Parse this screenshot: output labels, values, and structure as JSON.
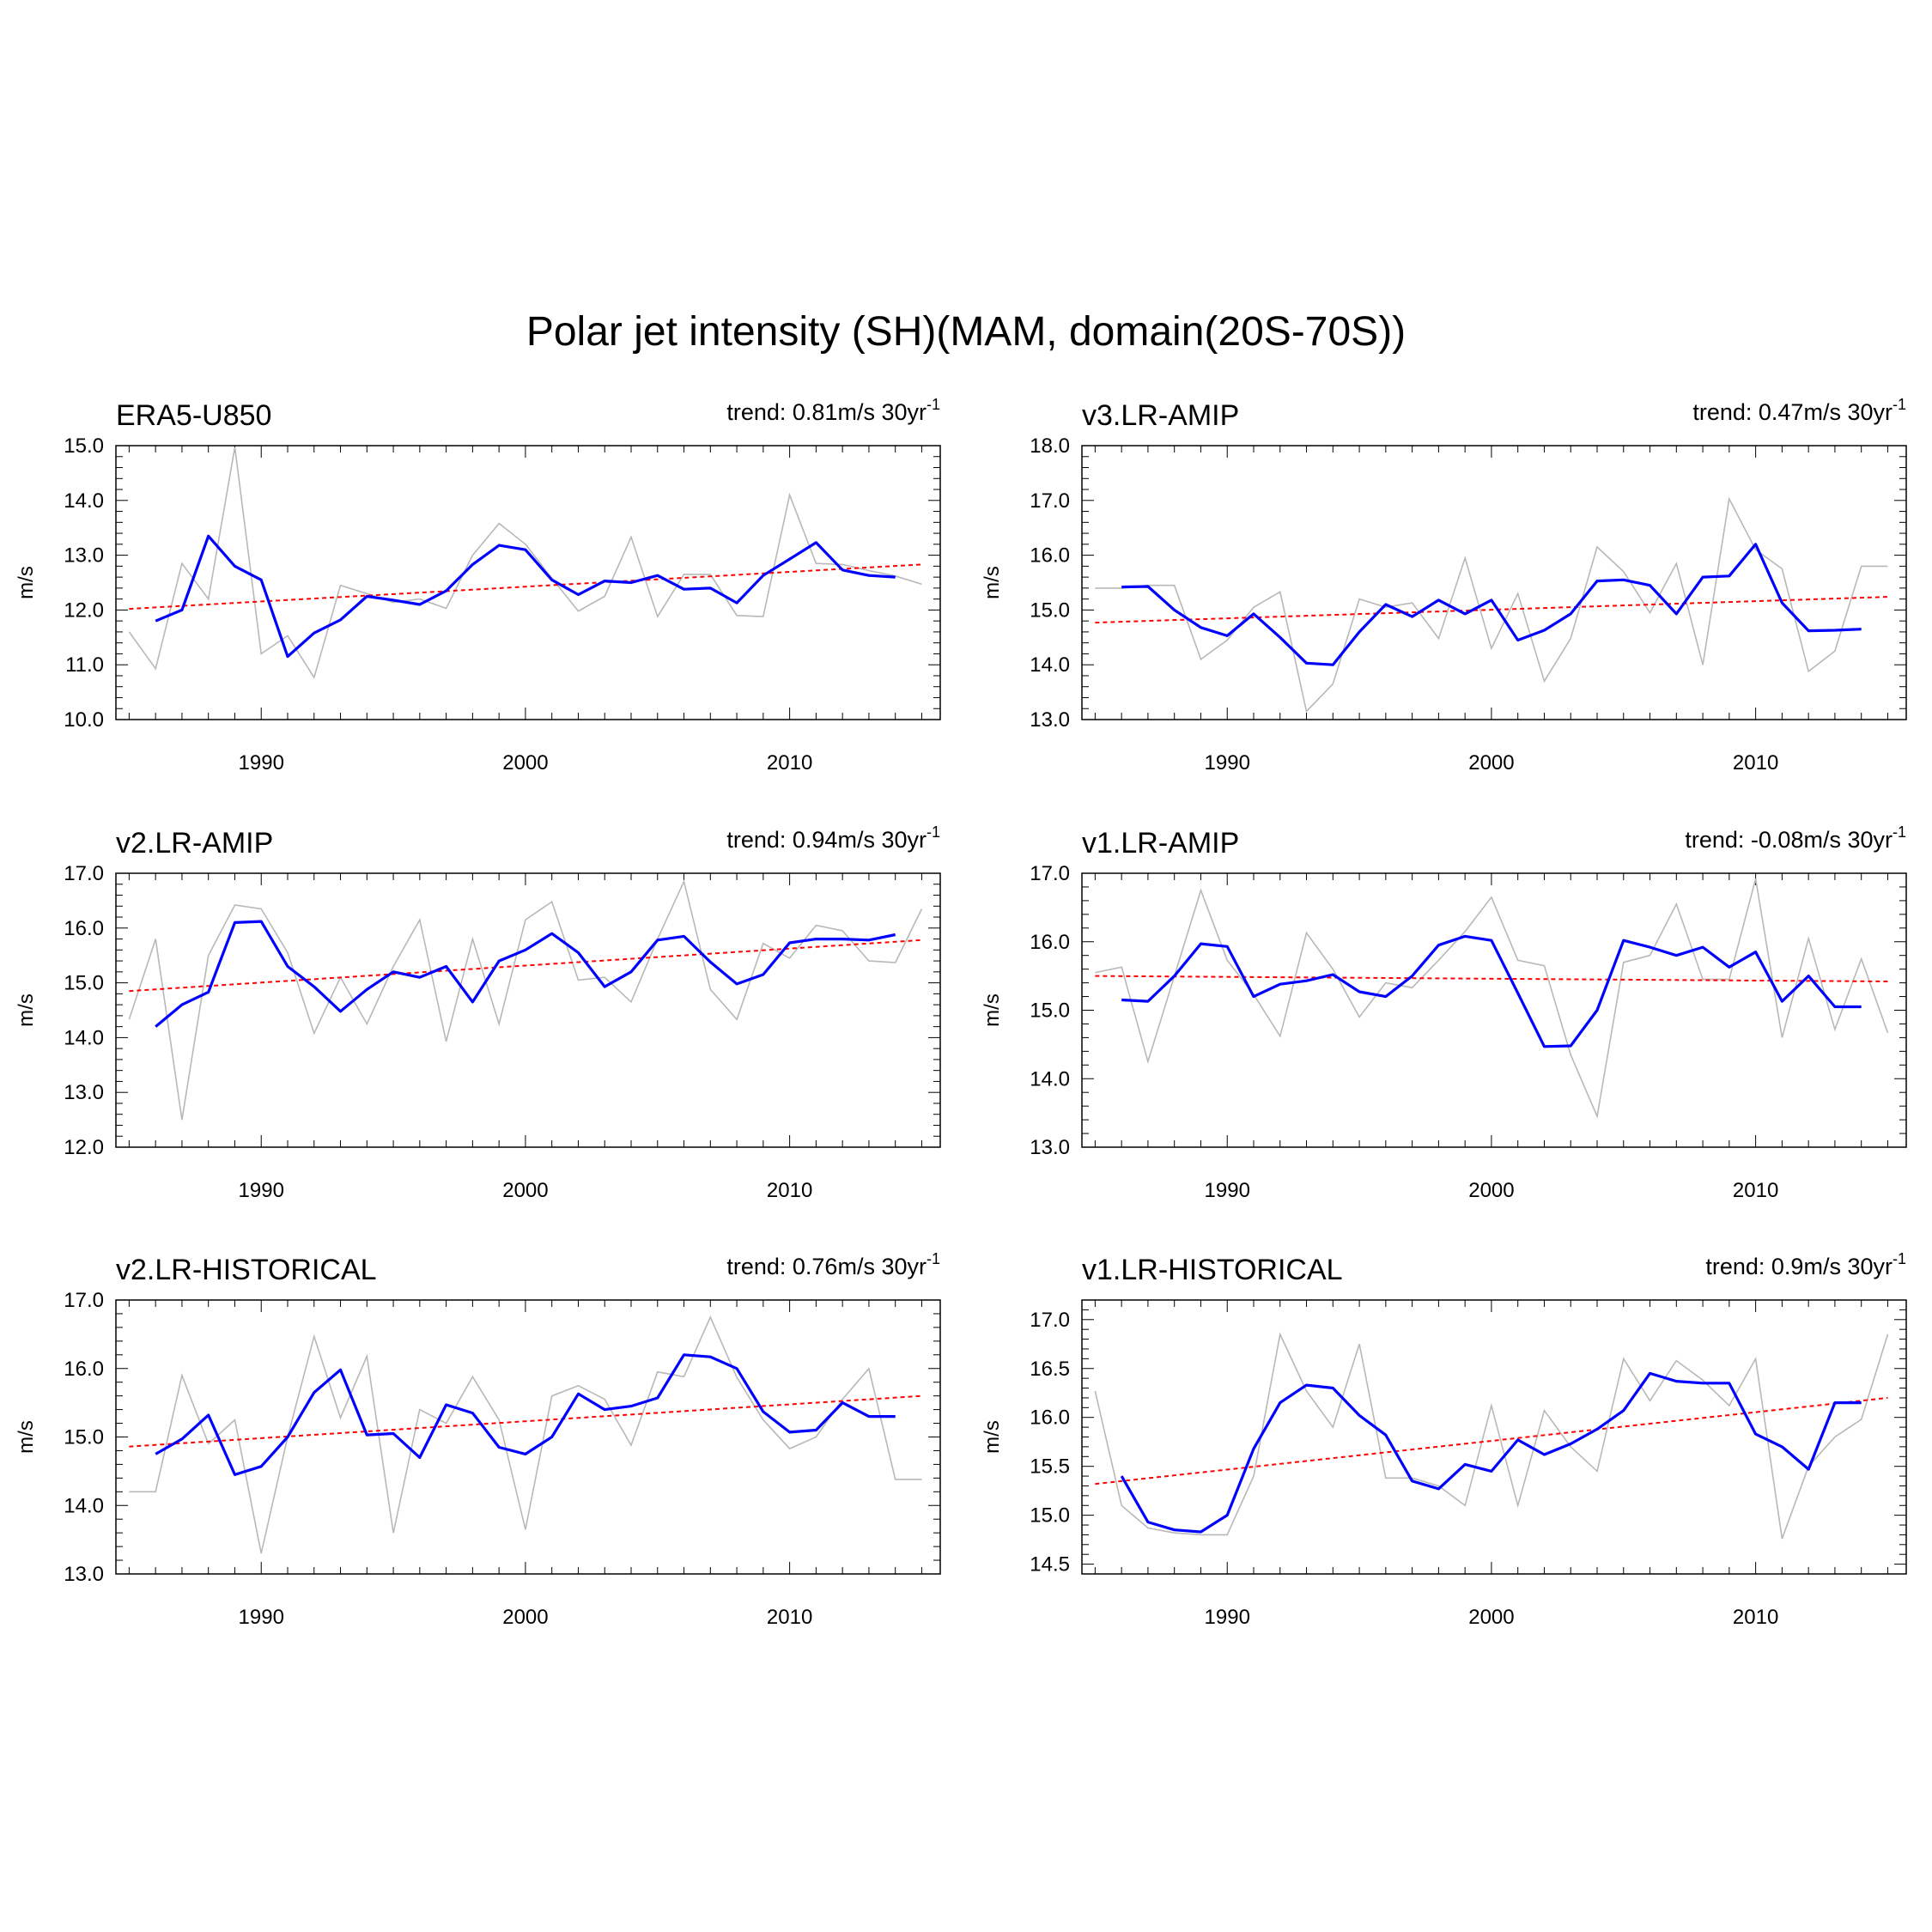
{
  "figure": {
    "title": "Polar jet intensity (SH)(MAM, domain(20S-70S))"
  },
  "colors": {
    "raw": "#b8b8b8",
    "smooth": "#0000ff",
    "trend": "#ff0000",
    "axis": "#000000"
  },
  "chart_data": [
    {
      "type": "line",
      "title": "ERA5-U850",
      "trend_label": "trend: 0.81m/s 30yr",
      "trend_sup": "-1",
      "ylabel": "m/s",
      "xlim": [
        1984.5,
        2015.7
      ],
      "ylim": [
        10.0,
        15.0
      ],
      "yticks": [
        10.0,
        11.0,
        12.0,
        13.0,
        14.0,
        15.0
      ],
      "xticks": [
        1990,
        2000,
        2010
      ],
      "raw": {
        "x": [
          1985,
          1986,
          1987,
          1988,
          1989,
          1990,
          1991,
          1992,
          1993,
          1994,
          1995,
          1996,
          1997,
          1998,
          1999,
          2000,
          2001,
          2002,
          2003,
          2004,
          2005,
          2006,
          2007,
          2008,
          2009,
          2010,
          2011,
          2012,
          2013,
          2014,
          2015
        ],
        "y": [
          11.6,
          10.93,
          12.85,
          12.2,
          14.97,
          11.2,
          11.53,
          10.77,
          12.45,
          12.3,
          12.14,
          12.2,
          12.03,
          13.0,
          13.58,
          13.2,
          12.58,
          11.98,
          12.25,
          13.33,
          11.88,
          12.65,
          12.65,
          11.9,
          11.88,
          14.1,
          12.85,
          12.83,
          12.72,
          12.62,
          12.47
        ]
      },
      "smooth": {
        "x": [
          1986,
          1987,
          1988,
          1989,
          1990,
          1991,
          1992,
          1993,
          1994,
          1995,
          1996,
          1997,
          1998,
          1999,
          2000,
          2001,
          2002,
          2003,
          2004,
          2005,
          2006,
          2007,
          2008,
          2009,
          2010,
          2011,
          2012,
          2013,
          2014
        ],
        "y": [
          11.8,
          12.0,
          13.35,
          12.8,
          12.55,
          11.15,
          11.58,
          11.82,
          12.25,
          12.18,
          12.1,
          12.35,
          12.83,
          13.18,
          13.1,
          12.55,
          12.28,
          12.53,
          12.5,
          12.63,
          12.38,
          12.4,
          12.13,
          12.63,
          12.93,
          13.23,
          12.73,
          12.63,
          12.6
        ]
      },
      "trend": {
        "x": [
          1985,
          2015
        ],
        "y": [
          12.02,
          12.83
        ]
      }
    },
    {
      "type": "line",
      "title": "v3.LR-AMIP",
      "trend_label": "trend: 0.47m/s 30yr",
      "trend_sup": "-1",
      "ylabel": "m/s",
      "xlim": [
        1984.5,
        2015.7
      ],
      "ylim": [
        13.0,
        18.0
      ],
      "yticks": [
        13.0,
        14.0,
        15.0,
        16.0,
        17.0,
        18.0
      ],
      "xticks": [
        1990,
        2000,
        2010
      ],
      "raw": {
        "x": [
          1985,
          1986,
          1987,
          1988,
          1989,
          1990,
          1991,
          1992,
          1993,
          1994,
          1995,
          1996,
          1997,
          1998,
          1999,
          2000,
          2001,
          2002,
          2003,
          2004,
          2005,
          2006,
          2007,
          2008,
          2009,
          2010,
          2011,
          2012,
          2013,
          2014,
          2015
        ],
        "y": [
          15.4,
          15.4,
          15.45,
          15.45,
          14.1,
          14.45,
          15.05,
          15.33,
          13.15,
          13.65,
          15.2,
          15.05,
          15.13,
          14.48,
          15.95,
          14.3,
          15.3,
          13.7,
          14.48,
          16.15,
          15.7,
          14.95,
          15.85,
          14.0,
          17.03,
          16.1,
          15.75,
          13.88,
          14.25,
          15.8,
          15.8
        ]
      },
      "smooth": {
        "x": [
          1986,
          1987,
          1988,
          1989,
          1990,
          1991,
          1992,
          1993,
          1994,
          1995,
          1996,
          1997,
          1998,
          1999,
          2000,
          2001,
          2002,
          2003,
          2004,
          2005,
          2006,
          2007,
          2008,
          2009,
          2010,
          2011,
          2012,
          2013,
          2014
        ],
        "y": [
          15.42,
          15.43,
          15.0,
          14.68,
          14.53,
          14.93,
          14.5,
          14.03,
          14.0,
          14.6,
          15.1,
          14.88,
          15.18,
          14.93,
          15.18,
          14.45,
          14.63,
          14.93,
          15.53,
          15.55,
          15.45,
          14.93,
          15.6,
          15.62,
          16.2,
          15.13,
          14.62,
          14.63,
          14.65
        ]
      },
      "trend": {
        "x": [
          1985,
          2015
        ],
        "y": [
          14.77,
          15.24
        ]
      }
    },
    {
      "type": "line",
      "title": "v2.LR-AMIP",
      "trend_label": "trend: 0.94m/s 30yr",
      "trend_sup": "-1",
      "ylabel": "m/s",
      "xlim": [
        1984.5,
        2015.7
      ],
      "ylim": [
        12.0,
        17.0
      ],
      "yticks": [
        12.0,
        13.0,
        14.0,
        15.0,
        16.0,
        17.0
      ],
      "xticks": [
        1990,
        2000,
        2010
      ],
      "raw": {
        "x": [
          1985,
          1986,
          1987,
          1988,
          1989,
          1990,
          1991,
          1992,
          1993,
          1994,
          1995,
          1996,
          1997,
          1998,
          1999,
          2000,
          2001,
          2002,
          2003,
          2004,
          2005,
          2006,
          2007,
          2008,
          2009,
          2010,
          2011,
          2012,
          2013,
          2014,
          2015
        ],
        "y": [
          14.33,
          15.8,
          12.5,
          15.5,
          16.42,
          16.35,
          15.55,
          14.08,
          15.1,
          14.25,
          15.3,
          16.15,
          13.93,
          15.8,
          14.25,
          16.15,
          16.48,
          15.05,
          15.1,
          14.65,
          15.8,
          16.85,
          14.88,
          14.33,
          15.72,
          15.45,
          16.05,
          15.95,
          15.4,
          15.37,
          16.35
        ]
      },
      "smooth": {
        "x": [
          1986,
          1987,
          1988,
          1989,
          1990,
          1991,
          1992,
          1993,
          1994,
          1995,
          1996,
          1997,
          1998,
          1999,
          2000,
          2001,
          2002,
          2003,
          2004,
          2005,
          2006,
          2007,
          2008,
          2009,
          2010,
          2011,
          2012,
          2013,
          2014
        ],
        "y": [
          14.2,
          14.6,
          14.83,
          16.1,
          16.12,
          15.3,
          14.93,
          14.48,
          14.88,
          15.2,
          15.1,
          15.3,
          14.65,
          15.4,
          15.6,
          15.9,
          15.55,
          14.93,
          15.2,
          15.78,
          15.85,
          15.38,
          14.98,
          15.15,
          15.73,
          15.8,
          15.8,
          15.78,
          15.88
        ]
      },
      "trend": {
        "x": [
          1985,
          2015
        ],
        "y": [
          14.85,
          15.78
        ]
      }
    },
    {
      "type": "line",
      "title": "v1.LR-AMIP",
      "trend_label": "trend: -0.08m/s 30yr",
      "trend_sup": "-1",
      "ylabel": "m/s",
      "xlim": [
        1984.5,
        2015.7
      ],
      "ylim": [
        13.0,
        17.0
      ],
      "yticks": [
        13.0,
        14.0,
        15.0,
        16.0,
        17.0
      ],
      "xticks": [
        1990,
        2000,
        2010
      ],
      "raw": {
        "x": [
          1985,
          1986,
          1987,
          1988,
          1989,
          1990,
          1991,
          1992,
          1993,
          1994,
          1995,
          1996,
          1997,
          1998,
          1999,
          2000,
          2001,
          2002,
          2003,
          2004,
          2005,
          2006,
          2007,
          2008,
          2009,
          2010,
          2011,
          2012,
          2013,
          2014,
          2015
        ],
        "y": [
          15.55,
          15.63,
          14.25,
          15.5,
          16.75,
          15.73,
          15.23,
          14.62,
          16.13,
          15.6,
          14.9,
          15.4,
          15.33,
          15.73,
          16.15,
          16.65,
          15.73,
          15.65,
          14.35,
          13.45,
          15.7,
          15.8,
          16.55,
          15.45,
          15.45,
          16.92,
          14.6,
          16.05,
          14.72,
          15.75,
          14.67
        ]
      },
      "smooth": {
        "x": [
          1986,
          1987,
          1988,
          1989,
          1990,
          1991,
          1992,
          1993,
          1994,
          1995,
          1996,
          1997,
          1998,
          1999,
          2000,
          2001,
          2002,
          2003,
          2004,
          2005,
          2006,
          2007,
          2008,
          2009,
          2010,
          2011,
          2012,
          2013,
          2014
        ],
        "y": [
          15.15,
          15.13,
          15.5,
          15.97,
          15.93,
          15.2,
          15.38,
          15.43,
          15.52,
          15.27,
          15.2,
          15.5,
          15.95,
          16.08,
          16.02,
          15.25,
          14.47,
          14.48,
          15.0,
          16.02,
          15.92,
          15.8,
          15.92,
          15.63,
          15.85,
          15.13,
          15.5,
          15.05,
          15.05
        ]
      },
      "trend": {
        "x": [
          1985,
          2015
        ],
        "y": [
          15.5,
          15.42
        ]
      }
    },
    {
      "type": "line",
      "title": "v2.LR-HISTORICAL",
      "trend_label": "trend: 0.76m/s 30yr",
      "trend_sup": "-1",
      "ylabel": "m/s",
      "xlim": [
        1984.5,
        2015.7
      ],
      "ylim": [
        13.0,
        17.0
      ],
      "yticks": [
        13.0,
        14.0,
        15.0,
        16.0,
        17.0
      ],
      "xticks": [
        1990,
        2000,
        2010
      ],
      "raw": {
        "x": [
          1985,
          1986,
          1987,
          1988,
          1989,
          1990,
          1991,
          1992,
          1993,
          1994,
          1995,
          1996,
          1997,
          1998,
          1999,
          2000,
          2001,
          2002,
          2003,
          2004,
          2005,
          2006,
          2007,
          2008,
          2009,
          2010,
          2011,
          2012,
          2013,
          2014,
          2015
        ],
        "y": [
          14.2,
          14.2,
          15.9,
          14.9,
          15.25,
          13.3,
          15.0,
          16.47,
          15.28,
          16.18,
          13.6,
          15.4,
          15.2,
          15.88,
          15.25,
          13.65,
          15.6,
          15.75,
          15.55,
          14.88,
          15.95,
          15.88,
          16.75,
          15.87,
          15.25,
          14.83,
          15.0,
          15.55,
          16.0,
          14.38,
          14.38
        ]
      },
      "smooth": {
        "x": [
          1986,
          1987,
          1988,
          1989,
          1990,
          1991,
          1992,
          1993,
          1994,
          1995,
          1996,
          1997,
          1998,
          1999,
          2000,
          2001,
          2002,
          2003,
          2004,
          2005,
          2006,
          2007,
          2008,
          2009,
          2010,
          2011,
          2012,
          2013,
          2014
        ],
        "y": [
          14.75,
          14.97,
          15.32,
          14.45,
          14.57,
          15.0,
          15.65,
          15.98,
          15.03,
          15.05,
          14.7,
          15.47,
          15.35,
          14.85,
          14.75,
          15.0,
          15.63,
          15.4,
          15.45,
          15.57,
          16.2,
          16.17,
          16.0,
          15.37,
          15.07,
          15.1,
          15.5,
          15.3,
          15.3
        ]
      },
      "trend": {
        "x": [
          1985,
          2015
        ],
        "y": [
          14.86,
          15.6
        ]
      }
    },
    {
      "type": "line",
      "title": "v1.LR-HISTORICAL",
      "trend_label": "trend: 0.9m/s 30yr",
      "trend_sup": "-1",
      "ylabel": "m/s",
      "xlim": [
        1984.5,
        2015.7
      ],
      "ylim": [
        14.4,
        17.2
      ],
      "yticks": [
        14.5,
        15.0,
        15.5,
        16.0,
        16.5,
        17.0
      ],
      "xticks": [
        1990,
        2000,
        2010
      ],
      "raw": {
        "x": [
          1985,
          1986,
          1987,
          1988,
          1989,
          1990,
          1991,
          1992,
          1993,
          1994,
          1995,
          1996,
          1997,
          1998,
          1999,
          2000,
          2001,
          2002,
          2003,
          2004,
          2005,
          2006,
          2007,
          2008,
          2009,
          2010,
          2011,
          2012,
          2013,
          2014,
          2015
        ],
        "y": [
          16.27,
          15.1,
          14.87,
          14.82,
          14.8,
          14.8,
          15.4,
          16.85,
          16.27,
          15.9,
          16.75,
          15.38,
          15.38,
          15.3,
          15.1,
          16.12,
          15.1,
          16.07,
          15.7,
          15.45,
          16.6,
          16.17,
          16.58,
          16.38,
          16.12,
          16.6,
          14.76,
          15.5,
          15.8,
          15.98,
          16.85
        ]
      },
      "smooth": {
        "x": [
          1986,
          1987,
          1988,
          1989,
          1990,
          1991,
          1992,
          1993,
          1994,
          1995,
          1996,
          1997,
          1998,
          1999,
          2000,
          2001,
          2002,
          2003,
          2004,
          2005,
          2006,
          2007,
          2008,
          2009,
          2010,
          2011,
          2012,
          2013,
          2014
        ],
        "y": [
          15.4,
          14.93,
          14.85,
          14.83,
          15.0,
          15.68,
          16.15,
          16.33,
          16.3,
          16.02,
          15.82,
          15.35,
          15.27,
          15.52,
          15.45,
          15.77,
          15.62,
          15.73,
          15.88,
          16.07,
          16.45,
          16.37,
          16.35,
          16.35,
          15.83,
          15.7,
          15.47,
          16.15,
          16.15
        ]
      },
      "trend": {
        "x": [
          1985,
          2015
        ],
        "y": [
          15.32,
          16.2
        ]
      }
    }
  ]
}
